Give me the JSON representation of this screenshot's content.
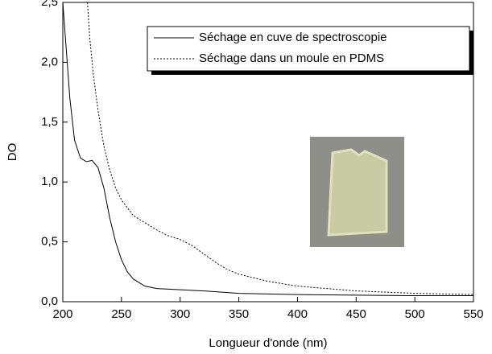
{
  "chart_data": {
    "type": "line",
    "xlabel": "Longueur d'onde (nm)",
    "ylabel": "DO",
    "xlim": [
      200,
      550
    ],
    "xticks": [
      200,
      250,
      300,
      350,
      400,
      450,
      500,
      550
    ],
    "ylim": [
      0,
      2.5
    ],
    "yticks": [
      {
        "value": 0,
        "label": "0,0"
      },
      {
        "value": 0.5,
        "label": "0,5"
      },
      {
        "value": 1,
        "label": "1,0"
      },
      {
        "value": 1.5,
        "label": "1,5"
      },
      {
        "value": 2,
        "label": "2,0"
      },
      {
        "value": 2.5,
        "label": "2,5"
      }
    ],
    "grid": false,
    "legend": "upper right",
    "series": [
      {
        "name": "Séchage en cuve de spectroscopie",
        "color": "#000000",
        "style": "solid",
        "x": [
          200,
          203,
          206,
          210,
          215,
          220,
          225,
          230,
          235,
          240,
          245,
          250,
          255,
          260,
          270,
          280,
          300,
          320,
          350,
          400,
          450,
          500,
          550
        ],
        "values": [
          2.5,
          2.1,
          1.7,
          1.35,
          1.2,
          1.17,
          1.18,
          1.12,
          0.95,
          0.7,
          0.5,
          0.35,
          0.25,
          0.19,
          0.13,
          0.11,
          0.1,
          0.09,
          0.07,
          0.06,
          0.055,
          0.05,
          0.05
        ]
      },
      {
        "name": "Séchage dans un moule en PDMS",
        "color": "#000000",
        "style": "dotted",
        "x": [
          221,
          223,
          226,
          230,
          235,
          240,
          245,
          250,
          260,
          270,
          280,
          290,
          300,
          310,
          320,
          330,
          340,
          350,
          375,
          400,
          450,
          500,
          550
        ],
        "values": [
          2.5,
          2.2,
          1.9,
          1.6,
          1.3,
          1.1,
          0.95,
          0.85,
          0.72,
          0.66,
          0.6,
          0.55,
          0.52,
          0.47,
          0.4,
          0.33,
          0.27,
          0.23,
          0.17,
          0.13,
          0.09,
          0.07,
          0.06
        ]
      }
    ]
  }
}
